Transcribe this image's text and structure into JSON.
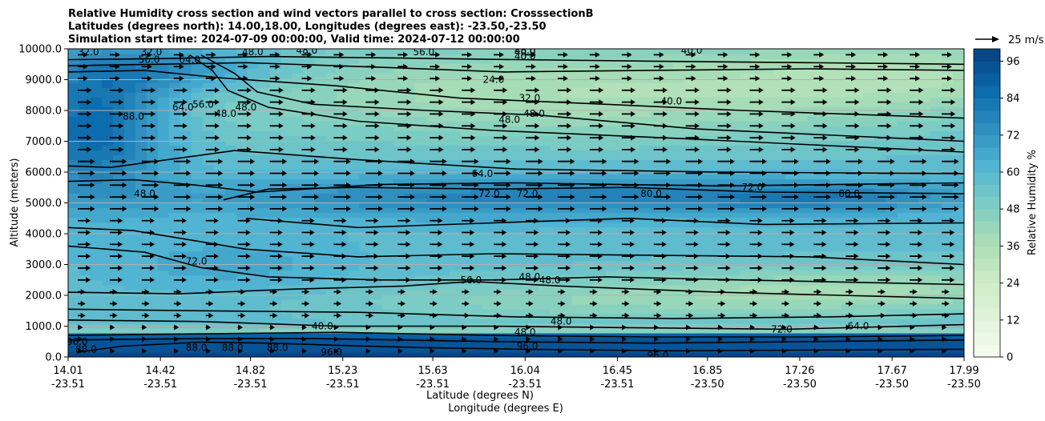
{
  "chart_data": {
    "type": "heatmap",
    "title_lines": [
      "Relative Humidity cross section and wind vectors parallel to cross section: CrosssectionB",
      "Latitudes (degrees north): 14.00,18.00, Longitudes (degrees east): -23.50,-23.50",
      "Simulation start time: 2024-07-09 00:00:00, Valid time: 2024-07-12 00:00:00"
    ],
    "ylabel": "Altitude (meters)",
    "xlabel_lines": [
      "Latitude (degrees N)",
      "Longitude (degrees E)"
    ],
    "ylim": [
      0,
      10000
    ],
    "yticks": [
      "0.0",
      "1000.0",
      "2000.0",
      "3000.0",
      "4000.0",
      "5000.0",
      "6000.0",
      "7000.0",
      "8000.0",
      "9000.0",
      "10000.0"
    ],
    "ytick_values": [
      0,
      1000,
      2000,
      3000,
      4000,
      5000,
      6000,
      7000,
      8000,
      9000,
      10000
    ],
    "xlim": [
      14.01,
      17.99
    ],
    "x_tick_positions": [
      14.01,
      14.42,
      14.82,
      15.23,
      15.63,
      16.04,
      16.45,
      16.85,
      17.26,
      17.67,
      17.99
    ],
    "xticks": [
      {
        "lat": "14.01",
        "lon": "-23.51"
      },
      {
        "lat": "14.42",
        "lon": "-23.51"
      },
      {
        "lat": "14.82",
        "lon": "-23.51"
      },
      {
        "lat": "15.23",
        "lon": "-23.51"
      },
      {
        "lat": "15.63",
        "lon": "-23.51"
      },
      {
        "lat": "16.04",
        "lon": "-23.51"
      },
      {
        "lat": "16.45",
        "lon": "-23.51"
      },
      {
        "lat": "16.85",
        "lon": "-23.50"
      },
      {
        "lat": "17.26",
        "lon": "-23.50"
      },
      {
        "lat": "17.67",
        "lon": "-23.50"
      },
      {
        "lat": "17.99",
        "lon": "-23.50"
      }
    ],
    "grid": "horizontal",
    "colorbar": {
      "label": "Relative Humidity %",
      "ticks": [
        "0",
        "12",
        "24",
        "36",
        "48",
        "60",
        "72",
        "84",
        "96"
      ],
      "tick_values": [
        0,
        12,
        24,
        36,
        48,
        60,
        72,
        84,
        96
      ],
      "range": [
        0,
        100
      ],
      "levels": 25,
      "colormap": "GnBu",
      "color_stops": [
        "#f7fcf0",
        "#e0f3db",
        "#ccebc5",
        "#a8ddb5",
        "#7bccc4",
        "#4eb3d3",
        "#2b8cbe",
        "#0868ac",
        "#084081"
      ]
    },
    "quiver_key": {
      "label": "25 m/s",
      "speed": 25
    },
    "wind_vectors": [
      {
        "alt_range": [
          9000,
          10000
        ],
        "speed": 12
      },
      {
        "alt_range": [
          6500,
          9000
        ],
        "speed": 16
      },
      {
        "alt_range": [
          4500,
          6500
        ],
        "speed": 20
      },
      {
        "alt_range": [
          2500,
          4500
        ],
        "speed": 15
      },
      {
        "alt_range": [
          1200,
          2500
        ],
        "speed": 9
      },
      {
        "alt_range": [
          0,
          1200
        ],
        "speed": 6
      }
    ],
    "contour_labels": [
      {
        "text": "32.0",
        "lat": 14.1,
        "alt": 9900
      },
      {
        "text": "32.0",
        "lat": 14.38,
        "alt": 9900
      },
      {
        "text": "48.0",
        "lat": 14.83,
        "alt": 9900
      },
      {
        "text": "48.0",
        "lat": 15.07,
        "alt": 9950
      },
      {
        "text": "56.0",
        "lat": 14.37,
        "alt": 9650
      },
      {
        "text": "64.0",
        "lat": 14.55,
        "alt": 9650
      },
      {
        "text": "56.0",
        "lat": 15.59,
        "alt": 9900
      },
      {
        "text": "40.0",
        "lat": 16.04,
        "alt": 9750
      },
      {
        "text": "48.0",
        "lat": 16.04,
        "alt": 9950
      },
      {
        "text": "40.0",
        "lat": 16.78,
        "alt": 9950
      },
      {
        "text": "40.0",
        "lat": 16.04,
        "alt": 9900
      },
      {
        "text": "24.0",
        "lat": 15.9,
        "alt": 9000
      },
      {
        "text": "32.0",
        "lat": 16.06,
        "alt": 8400
      },
      {
        "text": "40.0",
        "lat": 16.69,
        "alt": 8300
      },
      {
        "text": "48.0",
        "lat": 15.97,
        "alt": 7700
      },
      {
        "text": "48.0",
        "lat": 16.08,
        "alt": 7900
      },
      {
        "text": "88.0",
        "lat": 14.3,
        "alt": 7800
      },
      {
        "text": "64.0",
        "lat": 14.52,
        "alt": 8100
      },
      {
        "text": "56.0",
        "lat": 14.61,
        "alt": 8200
      },
      {
        "text": "48.0",
        "lat": 14.71,
        "alt": 7900
      },
      {
        "text": "48.0",
        "lat": 14.8,
        "alt": 8100
      },
      {
        "text": "64.0",
        "lat": 15.85,
        "alt": 5950
      },
      {
        "text": "48.0",
        "lat": 14.35,
        "alt": 5300
      },
      {
        "text": "72.0",
        "lat": 15.88,
        "alt": 5300
      },
      {
        "text": "72.0",
        "lat": 16.05,
        "alt": 5300
      },
      {
        "text": "80.0",
        "lat": 16.6,
        "alt": 5300
      },
      {
        "text": "72.0",
        "lat": 17.05,
        "alt": 5500
      },
      {
        "text": "80.0",
        "lat": 17.48,
        "alt": 5300
      },
      {
        "text": "72.0",
        "lat": 14.58,
        "alt": 3100
      },
      {
        "text": "56.0",
        "lat": 15.8,
        "alt": 2500
      },
      {
        "text": "48.0",
        "lat": 16.06,
        "alt": 2600
      },
      {
        "text": "48.0",
        "lat": 16.15,
        "alt": 2500
      },
      {
        "text": "48.0",
        "lat": 16.2,
        "alt": 1150
      },
      {
        "text": "40.0",
        "lat": 15.14,
        "alt": 1000
      },
      {
        "text": "48.0",
        "lat": 16.04,
        "alt": 800
      },
      {
        "text": "72.0",
        "lat": 17.18,
        "alt": 900
      },
      {
        "text": "64.0",
        "lat": 17.52,
        "alt": 1000
      },
      {
        "text": "96.0",
        "lat": 14.05,
        "alt": 500
      },
      {
        "text": "88.0",
        "lat": 14.09,
        "alt": 250
      },
      {
        "text": "88.0",
        "lat": 14.58,
        "alt": 300
      },
      {
        "text": "88.0",
        "lat": 14.74,
        "alt": 300
      },
      {
        "text": "88.0",
        "lat": 14.94,
        "alt": 300
      },
      {
        "text": "96.0",
        "lat": 15.18,
        "alt": 150
      },
      {
        "text": "96.0",
        "lat": 16.63,
        "alt": 50
      },
      {
        "text": "96.0",
        "lat": 16.05,
        "alt": 350
      }
    ]
  }
}
